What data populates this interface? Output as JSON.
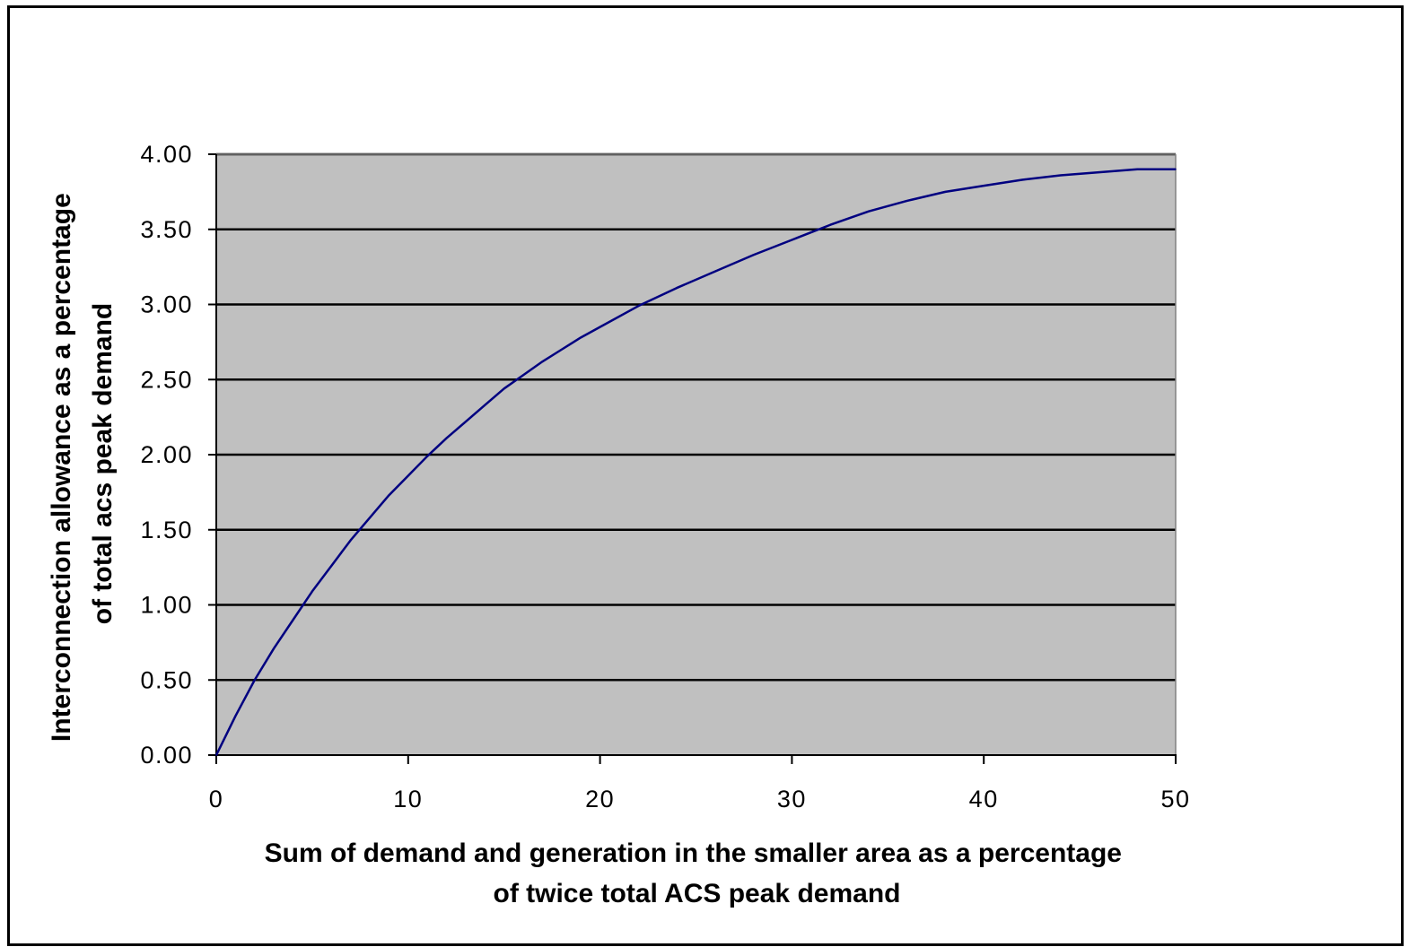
{
  "chart_data": {
    "type": "line",
    "title": "",
    "xlabel_lines": [
      "Sum of demand and generation in the smaller area as a percentage",
      "of twice total ACS peak demand"
    ],
    "ylabel_lines": [
      "Interconnection allowance as a percentage",
      "of total acs peak demand"
    ],
    "xlim": [
      0,
      50
    ],
    "ylim": [
      0,
      4
    ],
    "x_ticks": [
      0,
      10,
      20,
      30,
      40,
      50
    ],
    "x_tick_labels": [
      "0",
      "10",
      "20",
      "30",
      "40",
      "50"
    ],
    "y_ticks": [
      0,
      0.5,
      1,
      1.5,
      2,
      2.5,
      3,
      3.5,
      4
    ],
    "y_tick_labels": [
      "0.00",
      "0.50",
      "1.00",
      "1.50",
      "2.00",
      "2.50",
      "3.00",
      "3.50",
      "4.00"
    ],
    "grid": "horizontal",
    "legend": "none",
    "plot_background": "#C0C0C0",
    "series": [
      {
        "color": "#000080",
        "x": [
          0,
          1,
          2,
          3,
          4,
          5,
          6,
          7,
          8,
          9,
          10,
          11,
          12,
          13,
          14,
          15,
          16,
          17,
          18,
          19,
          20,
          22,
          24,
          26,
          28,
          30,
          32,
          34,
          36,
          38,
          40,
          42,
          44,
          46,
          48,
          50
        ],
        "y": [
          0.0,
          0.26,
          0.5,
          0.71,
          0.9,
          1.09,
          1.26,
          1.43,
          1.58,
          1.73,
          1.86,
          1.99,
          2.11,
          2.22,
          2.33,
          2.44,
          2.53,
          2.62,
          2.7,
          2.78,
          2.85,
          2.99,
          3.11,
          3.22,
          3.33,
          3.43,
          3.53,
          3.62,
          3.69,
          3.75,
          3.79,
          3.83,
          3.86,
          3.88,
          3.9,
          3.9
        ]
      }
    ]
  }
}
